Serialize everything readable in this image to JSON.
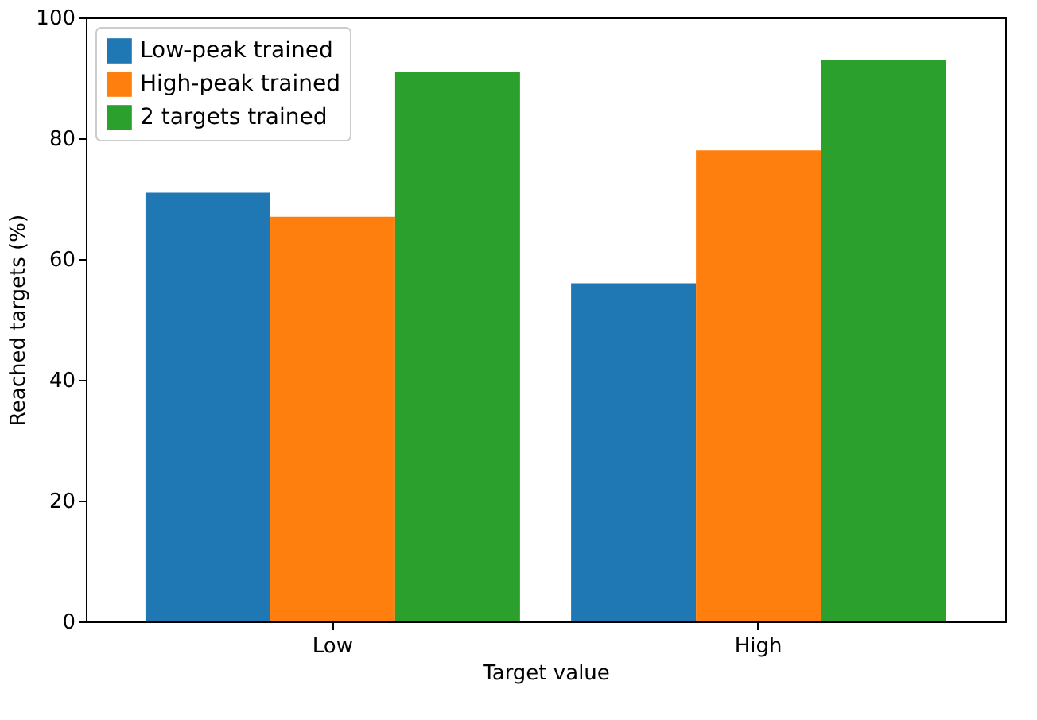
{
  "chart_data": {
    "type": "bar",
    "xlabel": "Target value",
    "ylabel": "Reached targets (%)",
    "categories": [
      "Low",
      "High"
    ],
    "series": [
      {
        "name": "Low-peak trained",
        "color": "#1f77b4",
        "values": [
          71,
          56
        ]
      },
      {
        "name": "High-peak trained",
        "color": "#ff7f0e",
        "values": [
          67,
          78
        ]
      },
      {
        "name": "2 targets trained",
        "color": "#2ca02c",
        "values": [
          91,
          93
        ]
      }
    ],
    "ylim": [
      0,
      100
    ],
    "yticks": [
      0,
      20,
      40,
      60,
      80,
      100
    ],
    "legend": "top left",
    "grid": false
  }
}
